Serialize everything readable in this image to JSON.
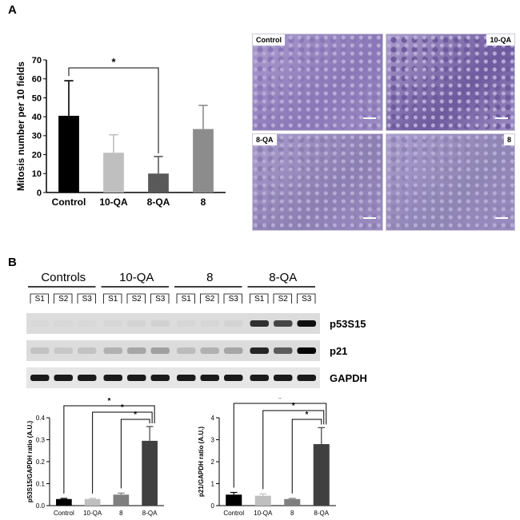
{
  "panels": {
    "a": "A",
    "b": "B"
  },
  "micrographs": [
    {
      "label": "Control",
      "label_side": "left",
      "tint": "#8a77b8"
    },
    {
      "label": "10-QA",
      "label_side": "right",
      "tint": "#6e5a9e"
    },
    {
      "label": "8-QA",
      "label_side": "left",
      "tint": "#8c7fb2"
    },
    {
      "label": "8",
      "label_side": "right",
      "tint": "#8e85b4"
    }
  ],
  "blot": {
    "groups": [
      "Controls",
      "10-QA",
      "8",
      "8-QA"
    ],
    "samples": [
      "S1",
      "S2",
      "S3"
    ],
    "bands": [
      {
        "label": "p53S15",
        "intensity": [
          [
            0.02,
            0.02,
            0.02
          ],
          [
            0.03,
            0.04,
            0.05
          ],
          [
            0.03,
            0.03,
            0.04
          ],
          [
            0.8,
            0.7,
            0.95
          ]
        ]
      },
      {
        "label": "p21",
        "intensity": [
          [
            0.12,
            0.1,
            0.12
          ],
          [
            0.2,
            0.25,
            0.28
          ],
          [
            0.15,
            0.2,
            0.25
          ],
          [
            0.85,
            0.6,
            1.0
          ]
        ]
      },
      {
        "label": "GAPDH",
        "intensity": [
          [
            0.9,
            0.9,
            0.9
          ],
          [
            0.9,
            0.9,
            0.9
          ],
          [
            0.9,
            0.9,
            0.9
          ],
          [
            0.9,
            0.9,
            0.9
          ]
        ]
      }
    ]
  },
  "chart_data": [
    {
      "type": "bar",
      "title": "",
      "categories": [
        "Control",
        "10-QA",
        "8-QA",
        "8"
      ],
      "values": [
        40.5,
        21,
        10,
        33.5
      ],
      "errors": [
        18.5,
        9.5,
        9,
        12.5
      ],
      "colors": [
        "#000000",
        "#bfbfbf",
        "#595959",
        "#8c8c8c"
      ],
      "xlabel": "",
      "ylabel": "Mitosis number per 10 fields",
      "ylim": [
        0,
        70
      ],
      "yticks": [
        "0",
        "10",
        "20",
        "30",
        "40",
        "50",
        "60",
        "70"
      ],
      "significance": [
        {
          "from": "Control",
          "to": "8-QA",
          "label": "*"
        }
      ]
    },
    {
      "type": "bar",
      "title": "",
      "categories": [
        "Control",
        "10-QA",
        "8",
        "8-QA"
      ],
      "values": [
        0.03,
        0.03,
        0.05,
        0.295
      ],
      "errors": [
        0.003,
        0.003,
        0.007,
        0.065
      ],
      "colors": [
        "#000000",
        "#bfbfbf",
        "#7f7f7f",
        "#404040"
      ],
      "xlabel": "",
      "ylabel": "p53S15/GAPDH ratio (A.U.)",
      "ylim": [
        0,
        0.4
      ],
      "yticks": [
        "0.0",
        "0.1",
        "0.2",
        "0.3",
        "0.4"
      ],
      "significance": [
        {
          "from": "Control",
          "to": "8-QA",
          "label": "*"
        },
        {
          "from": "10-QA",
          "to": "8-QA",
          "label": "*"
        },
        {
          "from": "8",
          "to": "8-QA",
          "label": "*"
        }
      ]
    },
    {
      "type": "bar",
      "title": "",
      "categories": [
        "Control",
        "10-QA",
        "8",
        "8-QA"
      ],
      "values": [
        0.5,
        0.45,
        0.3,
        2.8
      ],
      "errors": [
        0.1,
        0.08,
        0.03,
        0.75
      ],
      "colors": [
        "#000000",
        "#bfbfbf",
        "#7f7f7f",
        "#404040"
      ],
      "xlabel": "",
      "ylabel": "p21/GAPDH ratio (A.U.)",
      "ylim": [
        0,
        4
      ],
      "yticks": [
        "0",
        "1",
        "2",
        "3",
        "4"
      ],
      "significance": [
        {
          "from": "Control",
          "to": "8-QA",
          "label": "*"
        },
        {
          "from": "10-QA",
          "to": "8-QA",
          "label": "*"
        },
        {
          "from": "8",
          "to": "8-QA",
          "label": "*"
        }
      ]
    }
  ]
}
